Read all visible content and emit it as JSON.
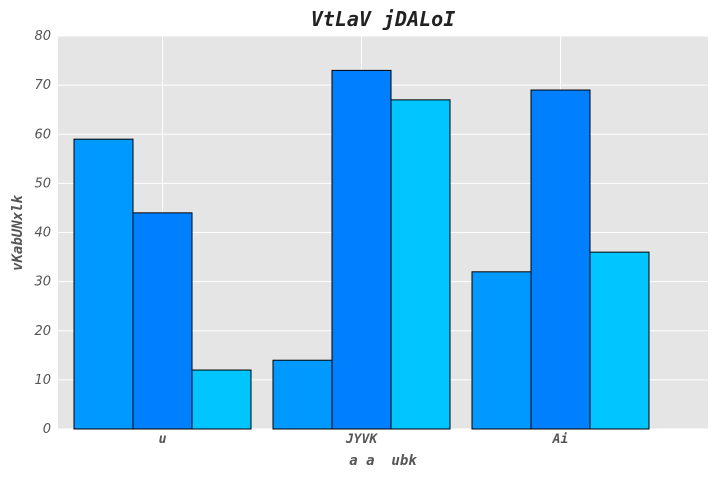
{
  "chart_data": {
    "type": "bar",
    "title": "VtLaV jDALoI",
    "xlabel": "a a  ubk",
    "ylabel": "vKabUNxlk",
    "categories": [
      "u",
      "JYVK",
      "Ai"
    ],
    "series": [
      {
        "values": [
          59,
          14,
          32
        ],
        "color": "#0099ff"
      },
      {
        "values": [
          44,
          73,
          69
        ],
        "color": "#0080ff"
      },
      {
        "values": [
          12,
          67,
          36
        ],
        "color": "#00c5ff"
      }
    ],
    "ylim": [
      0,
      80
    ],
    "yticks": [
      0,
      10,
      20,
      30,
      40,
      50,
      60,
      70,
      80
    ],
    "grid": true,
    "background": "#e5e5e5",
    "gridColor": "#ffffff"
  }
}
